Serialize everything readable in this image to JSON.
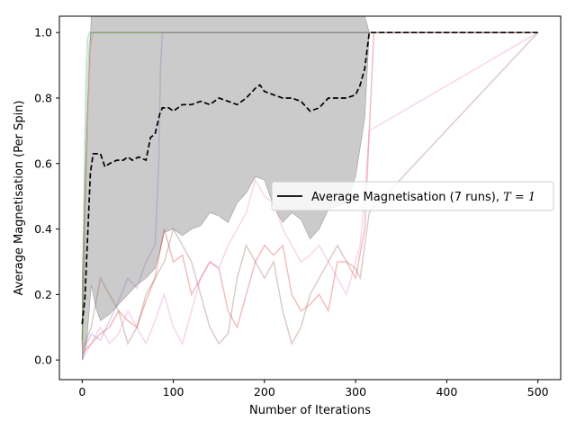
{
  "chart_data": {
    "type": "line",
    "title": "",
    "xlabel": "Number of Iterations",
    "ylabel": "Average Magnetisation (Per Spin)",
    "xlim": [
      -25,
      525
    ],
    "ylim": [
      -0.06,
      1.05
    ],
    "xticks": [
      0,
      100,
      200,
      300,
      400,
      500
    ],
    "yticks": [
      0.0,
      0.2,
      0.4,
      0.6,
      0.8,
      1.0
    ],
    "grid": false,
    "legend": {
      "location": "center-right",
      "label_prefix": "Average Magnetisation (7 runs), ",
      "label_math": "T = 1"
    },
    "average": {
      "color": "#000000",
      "style": "dashed",
      "x": [
        0,
        3,
        6,
        9,
        12,
        16,
        20,
        25,
        30,
        38,
        45,
        50,
        55,
        62,
        70,
        75,
        80,
        85,
        88,
        95,
        100,
        110,
        120,
        130,
        140,
        150,
        160,
        170,
        180,
        190,
        195,
        200,
        210,
        220,
        230,
        240,
        250,
        260,
        270,
        280,
        290,
        300,
        305,
        310,
        315,
        320,
        330,
        350,
        400,
        450,
        500
      ],
      "y": [
        0.11,
        0.19,
        0.38,
        0.57,
        0.63,
        0.63,
        0.63,
        0.59,
        0.6,
        0.61,
        0.61,
        0.62,
        0.61,
        0.62,
        0.61,
        0.68,
        0.69,
        0.75,
        0.77,
        0.77,
        0.76,
        0.78,
        0.78,
        0.79,
        0.78,
        0.8,
        0.79,
        0.78,
        0.8,
        0.83,
        0.84,
        0.82,
        0.81,
        0.8,
        0.8,
        0.79,
        0.76,
        0.77,
        0.8,
        0.8,
        0.8,
        0.81,
        0.84,
        0.89,
        1.0,
        1.0,
        1.0,
        1.0,
        1.0,
        1.0,
        1.0
      ]
    },
    "band": {
      "color": "#c8c8c8",
      "x": [
        0,
        5,
        10,
        15,
        20,
        30,
        40,
        50,
        60,
        70,
        80,
        85,
        90,
        100,
        110,
        120,
        130,
        140,
        150,
        160,
        170,
        180,
        190,
        200,
        210,
        220,
        230,
        240,
        250,
        260,
        270,
        280,
        290,
        300,
        310,
        315
      ],
      "lower": [
        0.0,
        0.06,
        0.23,
        0.16,
        0.12,
        0.14,
        0.17,
        0.2,
        0.23,
        0.25,
        0.28,
        0.33,
        0.39,
        0.4,
        0.38,
        0.4,
        0.41,
        0.45,
        0.44,
        0.42,
        0.48,
        0.51,
        0.56,
        0.55,
        0.47,
        0.42,
        0.45,
        0.43,
        0.37,
        0.4,
        0.46,
        0.47,
        0.48,
        0.56,
        0.74,
        1.0
      ],
      "upper": [
        0.25,
        0.7,
        1.05,
        1.05,
        1.05,
        1.05,
        1.05,
        1.05,
        1.05,
        1.05,
        1.05,
        1.05,
        1.05,
        1.05,
        1.05,
        1.05,
        1.05,
        1.05,
        1.05,
        1.05,
        1.05,
        1.05,
        1.05,
        1.05,
        1.05,
        1.05,
        1.05,
        1.05,
        1.05,
        1.05,
        1.05,
        1.05,
        1.05,
        1.05,
        1.05,
        1.0
      ]
    },
    "runs": [
      {
        "color": "#1f77b4",
        "x": [
          0,
          2,
          4,
          6,
          8,
          10,
          500
        ],
        "y": [
          0.05,
          0.3,
          0.6,
          0.85,
          0.97,
          1.0,
          1.0
        ]
      },
      {
        "color": "#ff7f0e",
        "x": [
          0,
          3,
          6,
          9,
          12,
          500
        ],
        "y": [
          0.04,
          0.4,
          0.75,
          0.95,
          1.0,
          1.0
        ]
      },
      {
        "color": "#2ca02c",
        "x": [
          0,
          2,
          4,
          6,
          8,
          500
        ],
        "y": [
          0.06,
          0.5,
          0.85,
          0.98,
          1.0,
          1.0
        ]
      },
      {
        "color": "#9467bd",
        "x": [
          0,
          5,
          10,
          20,
          30,
          40,
          50,
          60,
          70,
          80,
          84,
          86,
          88,
          500
        ],
        "y": [
          0.0,
          0.05,
          0.08,
          0.06,
          0.12,
          0.18,
          0.25,
          0.22,
          0.3,
          0.35,
          0.6,
          0.9,
          1.0,
          1.0
        ]
      },
      {
        "color": "#d62728",
        "x": [
          0,
          10,
          20,
          30,
          40,
          50,
          60,
          70,
          80,
          90,
          100,
          110,
          120,
          130,
          140,
          150,
          160,
          170,
          180,
          190,
          200,
          210,
          220,
          230,
          240,
          250,
          260,
          270,
          280,
          290,
          300,
          310,
          315,
          320,
          500
        ],
        "y": [
          0.02,
          0.05,
          0.08,
          0.1,
          0.15,
          0.12,
          0.1,
          0.18,
          0.25,
          0.4,
          0.3,
          0.32,
          0.2,
          0.25,
          0.3,
          0.28,
          0.15,
          0.1,
          0.2,
          0.3,
          0.35,
          0.32,
          0.35,
          0.2,
          0.15,
          0.17,
          0.2,
          0.15,
          0.3,
          0.3,
          0.25,
          0.4,
          0.7,
          1.0,
          1.0
        ]
      },
      {
        "color": "#8c564b",
        "x": [
          0,
          10,
          20,
          30,
          40,
          50,
          60,
          70,
          80,
          90,
          100,
          110,
          120,
          130,
          140,
          150,
          160,
          170,
          180,
          190,
          200,
          210,
          220,
          230,
          240,
          250,
          260,
          270,
          280,
          290,
          300,
          305,
          310,
          315,
          500
        ],
        "y": [
          0.03,
          0.1,
          0.25,
          0.2,
          0.15,
          0.05,
          0.1,
          0.2,
          0.25,
          0.3,
          0.4,
          0.35,
          0.3,
          0.2,
          0.1,
          0.05,
          0.08,
          0.25,
          0.35,
          0.3,
          0.25,
          0.3,
          0.15,
          0.05,
          0.1,
          0.2,
          0.25,
          0.3,
          0.35,
          0.3,
          0.28,
          0.25,
          0.35,
          0.45,
          1.0
        ]
      },
      {
        "color": "#e377c2",
        "x": [
          0,
          10,
          20,
          30,
          40,
          50,
          60,
          70,
          80,
          90,
          100,
          110,
          120,
          130,
          140,
          150,
          160,
          170,
          180,
          190,
          200,
          210,
          220,
          230,
          240,
          250,
          260,
          270,
          280,
          290,
          300,
          305,
          310,
          315,
          500
        ],
        "y": [
          0.0,
          0.05,
          0.1,
          0.05,
          0.08,
          0.15,
          0.1,
          0.05,
          0.12,
          0.2,
          0.1,
          0.05,
          0.15,
          0.25,
          0.3,
          0.28,
          0.35,
          0.4,
          0.45,
          0.55,
          0.5,
          0.48,
          0.4,
          0.35,
          0.3,
          0.32,
          0.35,
          0.3,
          0.25,
          0.2,
          0.3,
          0.35,
          0.5,
          0.7,
          1.0
        ]
      }
    ]
  }
}
